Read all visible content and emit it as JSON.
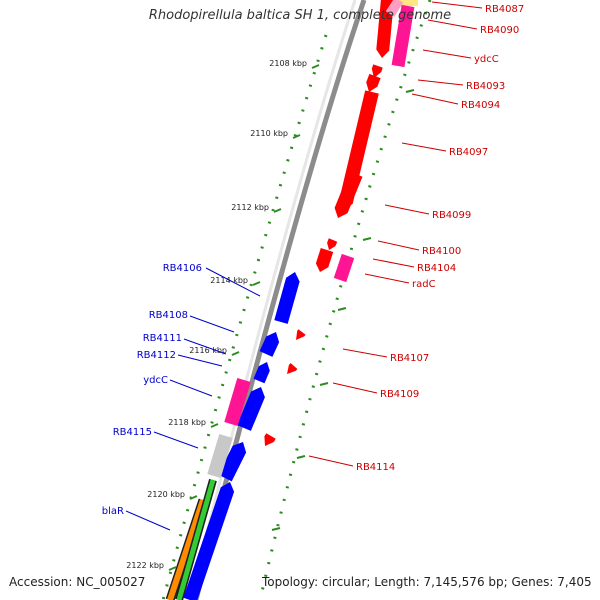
{
  "title": "Rhodopirellula baltica SH 1, complete genome",
  "accession": "Accession: NC_005027",
  "summary": "Topology: circular; Length: 7,145,576 bp; Genes: 7,405",
  "colors": {
    "backbone": "#8c8c8c",
    "tick": "#2e8b22",
    "forward_gene": "#ff0000",
    "reverse_gene": "#0000ff",
    "rna_gene": "#ff1493",
    "orange_track": "#ff8c00",
    "green_track": "#33cc33",
    "pseudo_gene": "#c8c8c8",
    "top_track": "#ffe680",
    "forward_label": "#cc0000",
    "reverse_label": "#0000cc"
  },
  "ruler_ticks": [
    {
      "label": "2108 kbp"
    },
    {
      "label": "2110 kbp"
    },
    {
      "label": "2112 kbp"
    },
    {
      "label": "2114 kbp"
    },
    {
      "label": "2116 kbp"
    },
    {
      "label": "2118 kbp"
    },
    {
      "label": "2120 kbp"
    },
    {
      "label": "2122 kbp"
    }
  ],
  "forward_genes": [
    {
      "label": "RB4087"
    },
    {
      "label": "RB4090"
    },
    {
      "label": "ydcC"
    },
    {
      "label": "RB4093"
    },
    {
      "label": "RB4094"
    },
    {
      "label": "RB4097"
    },
    {
      "label": "RB4099"
    },
    {
      "label": "RB4100"
    },
    {
      "label": "RB4104"
    },
    {
      "label": "radC"
    },
    {
      "label": "RB4107"
    },
    {
      "label": "RB4109"
    },
    {
      "label": "RB4114"
    }
  ],
  "reverse_genes": [
    {
      "label": "RB4106"
    },
    {
      "label": "RB4108"
    },
    {
      "label": "RB4111"
    },
    {
      "label": "RB4112"
    },
    {
      "label": "ydcC"
    },
    {
      "label": "RB4115"
    },
    {
      "label": "blaR"
    }
  ]
}
